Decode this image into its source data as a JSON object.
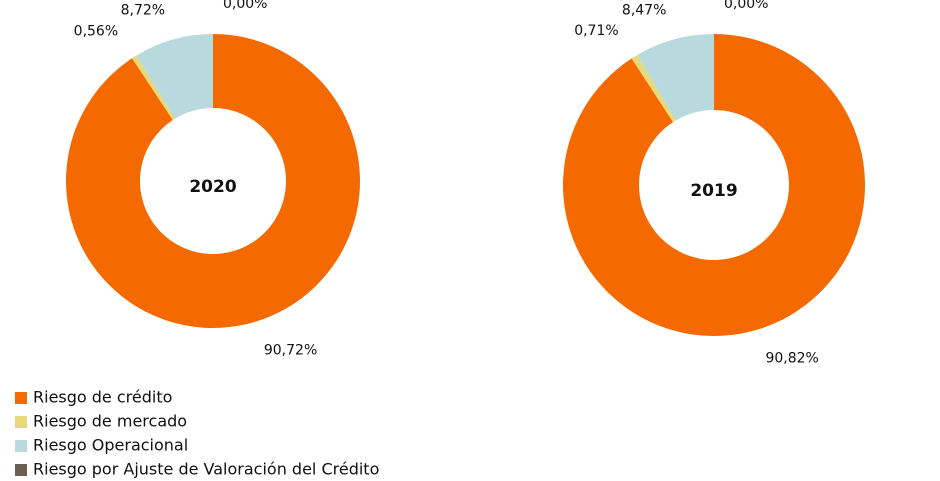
{
  "chart_data": [
    {
      "type": "donut",
      "title": "2020",
      "values": [
        90.72,
        0.56,
        8.72,
        0.0
      ],
      "value_labels": [
        "90,72%",
        "0,56%",
        "8,72%",
        "0,00%"
      ]
    },
    {
      "type": "donut",
      "title": "2019",
      "values": [
        90.82,
        0.71,
        8.47,
        0.0
      ],
      "value_labels": [
        "90,82%",
        "0,71%",
        "8,47%",
        "0,00%"
      ]
    }
  ],
  "legend": {
    "categories": [
      "Riesgo de crédito",
      "Riesgo de mercado",
      "Riesgo Operacional",
      "Riesgo por Ajuste de Valoración del Crédito"
    ],
    "colors": [
      "#f46a00",
      "#e6d97a",
      "#b8d9de",
      "#6e5e52"
    ]
  }
}
